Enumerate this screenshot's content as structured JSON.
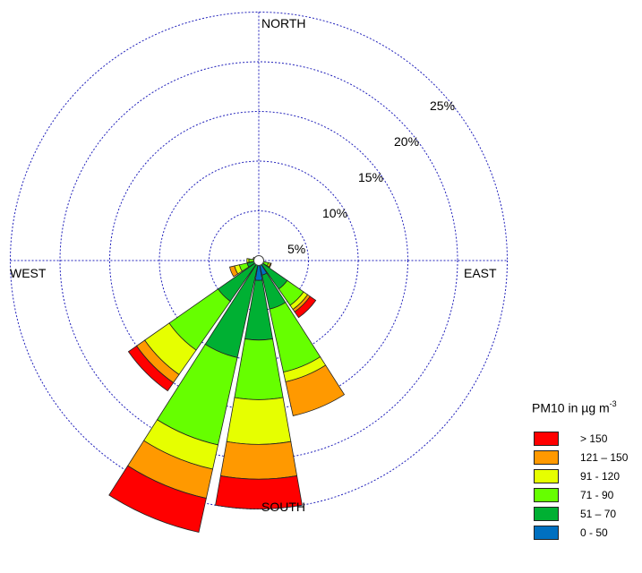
{
  "chart_data": {
    "type": "wind-rose",
    "ring_labels": [
      "5%",
      "10%",
      "15%",
      "20%",
      "25%"
    ],
    "ring_values": [
      5,
      10,
      15,
      20,
      25
    ],
    "directions": {
      "north": "NORTH",
      "south": "SOUTH",
      "east": "EAST",
      "west": "WEST"
    },
    "legend": {
      "title": "PM10 in µg m",
      "title_sup": "-3",
      "items": [
        {
          "label": "> 150",
          "color": "#ff0000"
        },
        {
          "label": "121 – 150",
          "color": "#ff9900"
        },
        {
          "label": "91 - 120",
          "color": "#e6ff00"
        },
        {
          "label": "71 - 90",
          "color": "#66ff00"
        },
        {
          "label": "51 – 70",
          "color": "#00b033"
        },
        {
          "label": "0 - 50",
          "color": "#0070c0"
        }
      ]
    },
    "bins": [
      "0 - 50",
      "51 – 70",
      "71 - 90",
      "91 - 120",
      "121 – 150",
      "> 150"
    ],
    "sector_width_deg": 22.5,
    "sectors": [
      {
        "direction_deg": 135,
        "cumulative_pct": [
          0.2,
          3.5,
          5.5,
          6.0,
          6.3,
          7.0
        ]
      },
      {
        "direction_deg": 157.5,
        "cumulative_pct": [
          1.5,
          5.0,
          11.5,
          12.5,
          16.0,
          16.0
        ]
      },
      {
        "direction_deg": 180,
        "cumulative_pct": [
          2.0,
          8.0,
          14.0,
          18.5,
          22.0,
          25.0
        ]
      },
      {
        "direction_deg": 202.5,
        "cumulative_pct": [
          0.3,
          10.0,
          19.0,
          21.5,
          24.5,
          28.0
        ]
      },
      {
        "direction_deg": 225,
        "cumulative_pct": [
          0.3,
          5.0,
          11.0,
          14.0,
          15.0,
          16.0
        ]
      },
      {
        "direction_deg": 247.5,
        "cumulative_pct": [
          0.2,
          1.2,
          2.0,
          2.5,
          3.0,
          3.0
        ]
      },
      {
        "direction_deg": 270,
        "cumulative_pct": [
          0.2,
          0.5,
          1.0,
          1.2,
          1.2,
          1.2
        ]
      },
      {
        "direction_deg": 292.5,
        "cumulative_pct": [
          0.2,
          0.3,
          0.5,
          0.6,
          0.6,
          0.6
        ]
      },
      {
        "direction_deg": 315,
        "cumulative_pct": [
          0.2,
          0.2,
          0.3,
          0.4,
          0.4,
          0.4
        ]
      },
      {
        "direction_deg": 112.5,
        "cumulative_pct": [
          0.2,
          0.5,
          1.0,
          1.2,
          1.3,
          1.3
        ]
      }
    ]
  }
}
